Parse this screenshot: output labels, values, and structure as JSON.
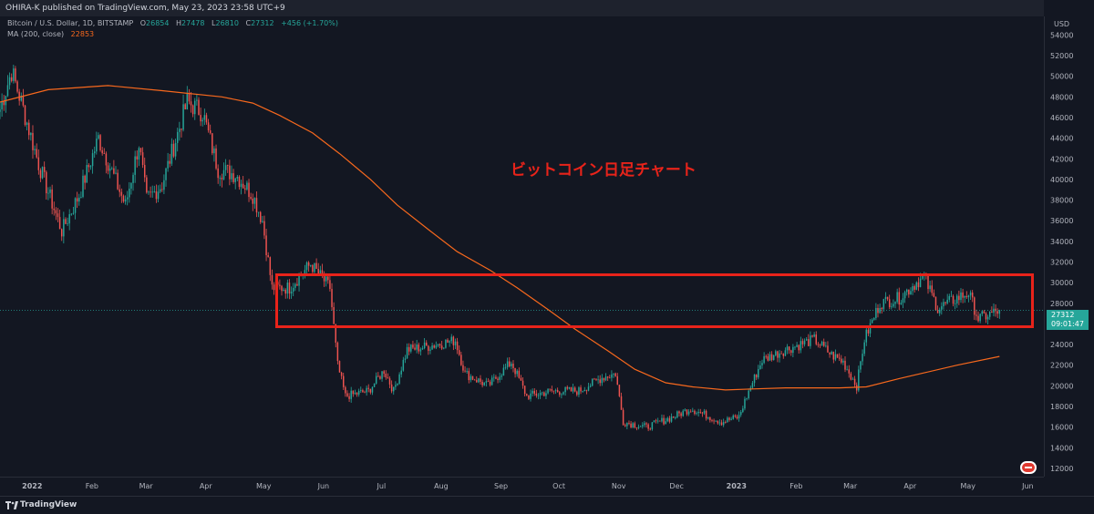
{
  "header": {
    "published_text": "OHIRA-K published on TradingView.com, May 23, 2023 23:58 UTC+9"
  },
  "legend": {
    "symbol_text": "Bitcoin / U.S. Dollar, 1D, BITSTAMP",
    "o_label": "O",
    "o_value": "26854",
    "h_label": "H",
    "h_value": "27478",
    "l_label": "L",
    "l_value": "26810",
    "c_label": "C",
    "c_value": "27312",
    "change_text": "+456 (+1.70%)",
    "ma_text": "MA (200, close)",
    "ma_value": "22853"
  },
  "price_badge": {
    "price": "27312",
    "countdown": "09:01:47"
  },
  "annotation": {
    "text": "ビットコイン日足チャート",
    "color": "#e8231a"
  },
  "footer": {
    "brand": "TradingView"
  },
  "colors": {
    "background": "#131722",
    "up": "#26a69a",
    "down": "#ef5350",
    "ma": "#f7681d",
    "highlight": "#e8231a"
  },
  "chart_data": {
    "type": "candlestick",
    "symbol": "Bitcoin / U.S. Dollar, 1D, BITSTAMP",
    "currency_label": "USD",
    "x_ticks": [
      "2022",
      "Feb",
      "Mar",
      "Apr",
      "May",
      "Jun",
      "Jul",
      "Aug",
      "Sep",
      "Oct",
      "Nov",
      "Dec",
      "2023",
      "Feb",
      "Mar",
      "Apr",
      "May",
      "Jun"
    ],
    "y_ticks": [
      12000,
      14000,
      16000,
      18000,
      20000,
      22000,
      24000,
      26000,
      28000,
      30000,
      32000,
      34000,
      36000,
      38000,
      40000,
      42000,
      44000,
      46000,
      48000,
      50000,
      52000,
      54000
    ],
    "y_range": [
      11200,
      55800
    ],
    "x_range": [
      "2021-12-21",
      "2023-06-15"
    ],
    "last_close": 27312,
    "price_points": [
      [
        "2021-12-21",
        46800
      ],
      [
        "2021-12-27",
        50500
      ],
      [
        "2022-01-01",
        47500
      ],
      [
        "2022-01-10",
        41500
      ],
      [
        "2022-01-22",
        35000
      ],
      [
        "2022-01-31",
        38500
      ],
      [
        "2022-02-10",
        44000
      ],
      [
        "2022-02-24",
        37500
      ],
      [
        "2022-03-03",
        43500
      ],
      [
        "2022-03-07",
        38000
      ],
      [
        "2022-03-15",
        39500
      ],
      [
        "2022-03-28",
        47500
      ],
      [
        "2022-04-05",
        46500
      ],
      [
        "2022-04-13",
        41000
      ],
      [
        "2022-04-22",
        40500
      ],
      [
        "2022-05-01",
        38500
      ],
      [
        "2022-05-06",
        36000
      ],
      [
        "2022-05-11",
        29500
      ],
      [
        "2022-05-20",
        29500
      ],
      [
        "2022-05-31",
        31800
      ],
      [
        "2022-06-10",
        29500
      ],
      [
        "2022-06-14",
        22000
      ],
      [
        "2022-06-18",
        19000
      ],
      [
        "2022-06-30",
        19500
      ],
      [
        "2022-07-08",
        21500
      ],
      [
        "2022-07-13",
        19500
      ],
      [
        "2022-07-20",
        23500
      ],
      [
        "2022-07-30",
        23800
      ],
      [
        "2022-08-14",
        24400
      ],
      [
        "2022-08-19",
        21200
      ],
      [
        "2022-08-31",
        20000
      ],
      [
        "2022-09-12",
        22300
      ],
      [
        "2022-09-20",
        19000
      ],
      [
        "2022-10-03",
        19500
      ],
      [
        "2022-10-17",
        19500
      ],
      [
        "2022-10-29",
        20800
      ],
      [
        "2022-11-05",
        21200
      ],
      [
        "2022-11-09",
        16500
      ],
      [
        "2022-11-21",
        16000
      ],
      [
        "2022-12-05",
        17000
      ],
      [
        "2022-12-14",
        17800
      ],
      [
        "2022-12-30",
        16500
      ],
      [
        "2023-01-08",
        17000
      ],
      [
        "2023-01-12",
        19000
      ],
      [
        "2023-01-20",
        22500
      ],
      [
        "2023-02-01",
        23500
      ],
      [
        "2023-02-16",
        24500
      ],
      [
        "2023-02-25",
        23000
      ],
      [
        "2023-03-03",
        22300
      ],
      [
        "2023-03-10",
        20000
      ],
      [
        "2023-03-14",
        24500
      ],
      [
        "2023-03-22",
        28000
      ],
      [
        "2023-04-01",
        28500
      ],
      [
        "2023-04-11",
        30200
      ],
      [
        "2023-04-14",
        30500
      ],
      [
        "2023-04-21",
        27500
      ],
      [
        "2023-05-01",
        28500
      ],
      [
        "2023-05-07",
        29000
      ],
      [
        "2023-05-12",
        26500
      ],
      [
        "2023-05-23",
        27312
      ]
    ],
    "ma_200": {
      "name": "MA (200, close)",
      "points": [
        [
          "2021-12-21",
          47500
        ],
        [
          "2022-01-15",
          48700
        ],
        [
          "2022-02-15",
          49100
        ],
        [
          "2022-03-15",
          48600
        ],
        [
          "2022-04-15",
          48000
        ],
        [
          "2022-05-01",
          47400
        ],
        [
          "2022-05-15",
          46200
        ],
        [
          "2022-06-01",
          44500
        ],
        [
          "2022-06-15",
          42500
        ],
        [
          "2022-07-01",
          40000
        ],
        [
          "2022-07-15",
          37500
        ],
        [
          "2022-08-01",
          35000
        ],
        [
          "2022-08-15",
          33000
        ],
        [
          "2022-09-01",
          31200
        ],
        [
          "2022-09-15",
          29500
        ],
        [
          "2022-10-01",
          27400
        ],
        [
          "2022-10-15",
          25500
        ],
        [
          "2022-11-01",
          23400
        ],
        [
          "2022-11-15",
          21600
        ],
        [
          "2022-12-01",
          20300
        ],
        [
          "2022-12-15",
          19900
        ],
        [
          "2023-01-01",
          19600
        ],
        [
          "2023-01-15",
          19700
        ],
        [
          "2023-02-01",
          19800
        ],
        [
          "2023-02-15",
          19800
        ],
        [
          "2023-03-01",
          19800
        ],
        [
          "2023-03-15",
          19900
        ],
        [
          "2023-04-01",
          20700
        ],
        [
          "2023-04-15",
          21300
        ],
        [
          "2023-05-01",
          22000
        ],
        [
          "2023-05-23",
          22853
        ]
      ]
    }
  }
}
